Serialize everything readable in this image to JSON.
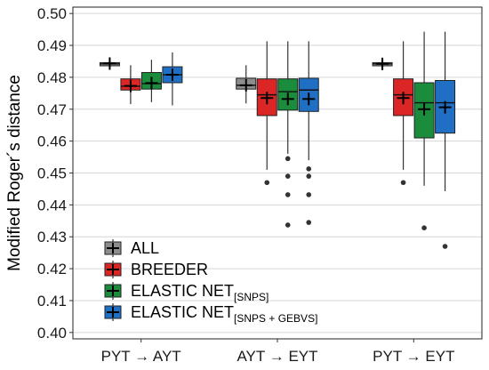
{
  "chart_data": {
    "type": "boxplot",
    "title": "",
    "xlabel": "",
    "ylabel": "Modified Roger´s distance",
    "ylim": [
      0.398,
      0.502
    ],
    "yticks": [
      "0.40",
      "0.41",
      "0.42",
      "0.43",
      "0.44",
      "0.45",
      "0.46",
      "0.47",
      "0.48",
      "0.49",
      "0.50"
    ],
    "grid": "horizontal",
    "legend_position": "bottom-left",
    "categories": [
      {
        "from": "PYT",
        "arrow": "→",
        "to": "AYT"
      },
      {
        "from": "AYT",
        "arrow": "→",
        "to": "EYT"
      },
      {
        "from": "PYT",
        "arrow": "→",
        "to": "EYT"
      }
    ],
    "series": [
      {
        "name": "ALL",
        "sub": "",
        "color": "#8c8c8c",
        "boxes": [
          {
            "whislo": 0.4826,
            "q1": 0.4836,
            "med": 0.4842,
            "q3": 0.4846,
            "whishi": 0.4856,
            "mean": 0.4843,
            "fliers": []
          },
          {
            "whislo": 0.4718,
            "q1": 0.4763,
            "med": 0.4775,
            "q3": 0.4797,
            "whishi": 0.4838,
            "mean": 0.4775,
            "fliers": []
          },
          {
            "whislo": 0.4826,
            "q1": 0.4836,
            "med": 0.4842,
            "q3": 0.4846,
            "whishi": 0.4852,
            "mean": 0.4842,
            "fliers": []
          }
        ]
      },
      {
        "name": "BREEDER",
        "sub": "",
        "color": "#dc2626",
        "boxes": [
          {
            "whislo": 0.4716,
            "q1": 0.476,
            "med": 0.4772,
            "q3": 0.4795,
            "whishi": 0.4838,
            "mean": 0.4773,
            "fliers": []
          },
          {
            "whislo": 0.451,
            "q1": 0.468,
            "med": 0.4745,
            "q3": 0.4795,
            "whishi": 0.4913,
            "mean": 0.4735,
            "fliers": [
              0.447
            ]
          },
          {
            "whislo": 0.451,
            "q1": 0.468,
            "med": 0.4745,
            "q3": 0.4795,
            "whishi": 0.4913,
            "mean": 0.4735,
            "fliers": [
              0.447
            ]
          }
        ]
      },
      {
        "name": "ELASTIC NET",
        "sub": "[SNPS]",
        "color": "#1a8c3c",
        "boxes": [
          {
            "whislo": 0.4722,
            "q1": 0.4763,
            "med": 0.478,
            "q3": 0.4815,
            "whishi": 0.4855,
            "mean": 0.4782,
            "fliers": []
          },
          {
            "whislo": 0.456,
            "q1": 0.4697,
            "med": 0.4755,
            "q3": 0.4795,
            "whishi": 0.4913,
            "mean": 0.4732,
            "fliers": [
              0.4545,
              0.449,
              0.4432,
              0.4337
            ]
          },
          {
            "whislo": 0.446,
            "q1": 0.461,
            "med": 0.472,
            "q3": 0.4783,
            "whishi": 0.4943,
            "mean": 0.47,
            "fliers": [
              0.4328
            ]
          }
        ]
      },
      {
        "name": "ELASTIC NET",
        "sub": "[SNPS + GEBVS]",
        "color": "#1f6fc5",
        "boxes": [
          {
            "whislo": 0.4712,
            "q1": 0.4783,
            "med": 0.4808,
            "q3": 0.4833,
            "whishi": 0.4878,
            "mean": 0.4808,
            "fliers": []
          },
          {
            "whislo": 0.454,
            "q1": 0.4693,
            "med": 0.476,
            "q3": 0.4797,
            "whishi": 0.4913,
            "mean": 0.4732,
            "fliers": [
              0.4513,
              0.449,
              0.4432,
              0.4345
            ]
          },
          {
            "whislo": 0.4443,
            "q1": 0.4625,
            "med": 0.472,
            "q3": 0.479,
            "whishi": 0.4943,
            "mean": 0.4706,
            "fliers": [
              0.427
            ]
          }
        ]
      }
    ]
  }
}
